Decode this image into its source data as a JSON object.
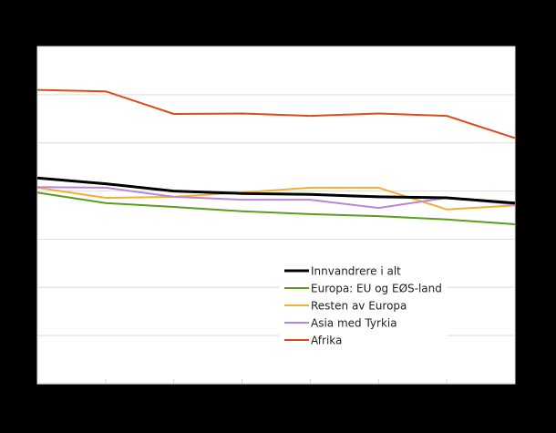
{
  "chart_data": {
    "type": "line",
    "title": "",
    "xlabel": "",
    "ylabel": "",
    "x": [
      1,
      2,
      3,
      4,
      5,
      6,
      7,
      8
    ],
    "x_tick_labels_visible": false,
    "y_tick_labels_visible": false,
    "ylim": [
      0,
      7
    ],
    "y_unit_note": "values estimated in gridline units (0 = bottom axis, 7 = top); axis labels not visible",
    "grid": true,
    "legend_position": "inside-lower-right",
    "series": [
      {
        "name": "Innvandrere i alt",
        "color": "#000000",
        "width": 3,
        "values": [
          4.27,
          4.15,
          4.0,
          3.95,
          3.93,
          3.88,
          3.86,
          3.75
        ]
      },
      {
        "name": "Europa: EU og EØS-land",
        "color": "#5a9e1e",
        "width": 2,
        "values": [
          3.97,
          3.75,
          3.67,
          3.58,
          3.52,
          3.48,
          3.41,
          3.31
        ]
      },
      {
        "name": "Resten av Europa",
        "color": "#f0b030",
        "width": 2,
        "values": [
          4.07,
          3.86,
          3.88,
          3.97,
          4.07,
          4.07,
          3.62,
          3.7
        ]
      },
      {
        "name": "Asia med Tyrkia",
        "color": "#b888d8",
        "width": 2,
        "values": [
          4.08,
          4.07,
          3.88,
          3.82,
          3.82,
          3.65,
          3.86,
          3.72
        ]
      },
      {
        "name": "Afrika",
        "color": "#dd4a1c",
        "width": 2,
        "values": [
          6.1,
          6.07,
          5.6,
          5.61,
          5.56,
          5.61,
          5.56,
          5.1
        ]
      }
    ]
  },
  "layout": {
    "background": "#000000",
    "plot_background": "#ffffff",
    "gridline_color": "#e2e2e2"
  }
}
